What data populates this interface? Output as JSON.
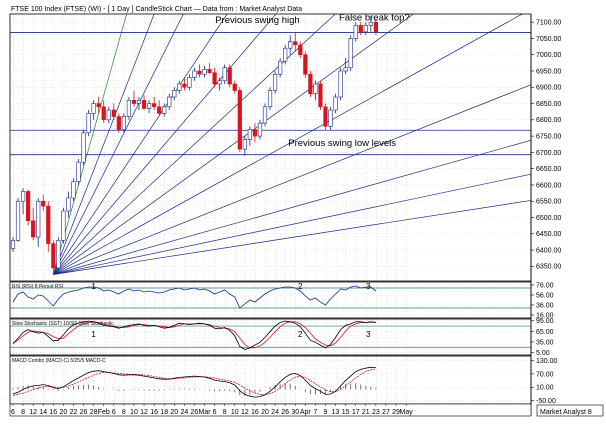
{
  "chart_data": {
    "type": "candlestick",
    "title": "FTSE 100 Index (FTSE) (WI) -  [ 1 Day ] CandleStick Chart — Data from : Market Analyst Data",
    "watermark": "Market Analyst 8",
    "price_ticks": [
      7100,
      7050,
      7000,
      6950,
      6900,
      6850,
      6800,
      6750,
      6700,
      6650,
      6600,
      6550,
      6500,
      6450,
      6400,
      6350
    ],
    "price_tick_labels": [
      "7100.00",
      "7050.00",
      "7000.00",
      "6950.00",
      "6900.00",
      "6850.00",
      "6800.00",
      "6750.00",
      "6700.00",
      "6650.00",
      "6600.00",
      "6550.00",
      "6500.00",
      "6450.00",
      "6400.00",
      "6350.00"
    ],
    "ylim": [
      6305,
      7125
    ],
    "x_labels": [
      "6",
      "8",
      "12",
      "14",
      "16",
      "20",
      "22",
      "26",
      "28",
      "Feb",
      "6",
      "8",
      "10",
      "12",
      "16",
      "18",
      "20",
      "24",
      "26",
      "Mar",
      "6",
      "8",
      "10",
      "12",
      "16",
      "20",
      "24",
      "26",
      "30",
      "Apr",
      "7",
      "9",
      "13",
      "15",
      "17",
      "21",
      "23",
      "27",
      "29",
      "May"
    ],
    "horizontal_levels": [
      7068,
      6768,
      6693
    ],
    "candles": [
      {
        "o": 6405,
        "h": 6440,
        "l": 6395,
        "c": 6430
      },
      {
        "o": 6430,
        "h": 6560,
        "l": 6425,
        "c": 6550
      },
      {
        "o": 6550,
        "h": 6590,
        "l": 6510,
        "c": 6580
      },
      {
        "o": 6580,
        "h": 6585,
        "l": 6475,
        "c": 6490
      },
      {
        "o": 6490,
        "h": 6530,
        "l": 6430,
        "c": 6440
      },
      {
        "o": 6440,
        "h": 6560,
        "l": 6410,
        "c": 6550
      },
      {
        "o": 6550,
        "h": 6570,
        "l": 6520,
        "c": 6535
      },
      {
        "o": 6535,
        "h": 6550,
        "l": 6395,
        "c": 6420
      },
      {
        "o": 6420,
        "h": 6430,
        "l": 6325,
        "c": 6345
      },
      {
        "o": 6345,
        "h": 6440,
        "l": 6340,
        "c": 6430
      },
      {
        "o": 6430,
        "h": 6530,
        "l": 6420,
        "c": 6520
      },
      {
        "o": 6520,
        "h": 6580,
        "l": 6500,
        "c": 6560
      },
      {
        "o": 6560,
        "h": 6620,
        "l": 6550,
        "c": 6610
      },
      {
        "o": 6610,
        "h": 6680,
        "l": 6600,
        "c": 6670
      },
      {
        "o": 6670,
        "h": 6770,
        "l": 6660,
        "c": 6760
      },
      {
        "o": 6760,
        "h": 6830,
        "l": 6750,
        "c": 6820
      },
      {
        "o": 6820,
        "h": 6860,
        "l": 6800,
        "c": 6850
      },
      {
        "o": 6850,
        "h": 6870,
        "l": 6820,
        "c": 6840
      },
      {
        "o": 6840,
        "h": 6860,
        "l": 6790,
        "c": 6800
      },
      {
        "o": 6800,
        "h": 6840,
        "l": 6790,
        "c": 6830
      },
      {
        "o": 6830,
        "h": 6850,
        "l": 6800,
        "c": 6810
      },
      {
        "o": 6810,
        "h": 6820,
        "l": 6760,
        "c": 6770
      },
      {
        "o": 6770,
        "h": 6820,
        "l": 6760,
        "c": 6810
      },
      {
        "o": 6810,
        "h": 6870,
        "l": 6800,
        "c": 6860
      },
      {
        "o": 6860,
        "h": 6890,
        "l": 6840,
        "c": 6850
      },
      {
        "o": 6850,
        "h": 6870,
        "l": 6830,
        "c": 6860
      },
      {
        "o": 6860,
        "h": 6875,
        "l": 6830,
        "c": 6835
      },
      {
        "o": 6835,
        "h": 6860,
        "l": 6820,
        "c": 6850
      },
      {
        "o": 6850,
        "h": 6870,
        "l": 6830,
        "c": 6840
      },
      {
        "o": 6840,
        "h": 6860,
        "l": 6815,
        "c": 6820
      },
      {
        "o": 6820,
        "h": 6850,
        "l": 6810,
        "c": 6840
      },
      {
        "o": 6840,
        "h": 6880,
        "l": 6830,
        "c": 6870
      },
      {
        "o": 6870,
        "h": 6900,
        "l": 6860,
        "c": 6890
      },
      {
        "o": 6890,
        "h": 6920,
        "l": 6880,
        "c": 6910
      },
      {
        "o": 6910,
        "h": 6930,
        "l": 6890,
        "c": 6900
      },
      {
        "o": 6900,
        "h": 6940,
        "l": 6890,
        "c": 6930
      },
      {
        "o": 6930,
        "h": 6960,
        "l": 6920,
        "c": 6950
      },
      {
        "o": 6950,
        "h": 6970,
        "l": 6930,
        "c": 6940
      },
      {
        "o": 6940,
        "h": 6965,
        "l": 6930,
        "c": 6955
      },
      {
        "o": 6955,
        "h": 6975,
        "l": 6940,
        "c": 6945
      },
      {
        "o": 6945,
        "h": 6960,
        "l": 6900,
        "c": 6910
      },
      {
        "o": 6910,
        "h": 6930,
        "l": 6890,
        "c": 6920
      },
      {
        "o": 6920,
        "h": 6970,
        "l": 6910,
        "c": 6960
      },
      {
        "o": 6960,
        "h": 6970,
        "l": 6900,
        "c": 6910
      },
      {
        "o": 6910,
        "h": 6920,
        "l": 6880,
        "c": 6890
      },
      {
        "o": 6890,
        "h": 6900,
        "l": 6700,
        "c": 6710
      },
      {
        "o": 6710,
        "h": 6750,
        "l": 6690,
        "c": 6740
      },
      {
        "o": 6740,
        "h": 6780,
        "l": 6720,
        "c": 6770
      },
      {
        "o": 6770,
        "h": 6790,
        "l": 6730,
        "c": 6750
      },
      {
        "o": 6750,
        "h": 6800,
        "l": 6740,
        "c": 6790
      },
      {
        "o": 6790,
        "h": 6850,
        "l": 6780,
        "c": 6840
      },
      {
        "o": 6840,
        "h": 6900,
        "l": 6830,
        "c": 6890
      },
      {
        "o": 6890,
        "h": 6950,
        "l": 6880,
        "c": 6940
      },
      {
        "o": 6940,
        "h": 6990,
        "l": 6930,
        "c": 6980
      },
      {
        "o": 6980,
        "h": 7030,
        "l": 6970,
        "c": 7020
      },
      {
        "o": 7020,
        "h": 7060,
        "l": 7000,
        "c": 7040
      },
      {
        "o": 7040,
        "h": 7070,
        "l": 7010,
        "c": 7030
      },
      {
        "o": 7030,
        "h": 7040,
        "l": 6990,
        "c": 7000
      },
      {
        "o": 7000,
        "h": 7010,
        "l": 6930,
        "c": 6940
      },
      {
        "o": 6940,
        "h": 6950,
        "l": 6870,
        "c": 6880
      },
      {
        "o": 6880,
        "h": 6920,
        "l": 6860,
        "c": 6910
      },
      {
        "o": 6910,
        "h": 6920,
        "l": 6830,
        "c": 6840
      },
      {
        "o": 6840,
        "h": 6850,
        "l": 6770,
        "c": 6780
      },
      {
        "o": 6780,
        "h": 6840,
        "l": 6770,
        "c": 6830
      },
      {
        "o": 6830,
        "h": 6880,
        "l": 6820,
        "c": 6870
      },
      {
        "o": 6870,
        "h": 6960,
        "l": 6860,
        "c": 6950
      },
      {
        "o": 6950,
        "h": 6990,
        "l": 6940,
        "c": 6960
      },
      {
        "o": 6960,
        "h": 7060,
        "l": 6950,
        "c": 7050
      },
      {
        "o": 7050,
        "h": 7100,
        "l": 7040,
        "c": 7090
      },
      {
        "o": 7090,
        "h": 7100,
        "l": 7060,
        "c": 7070
      },
      {
        "o": 7070,
        "h": 7100,
        "l": 7060,
        "c": 7090
      },
      {
        "o": 7090,
        "h": 7120,
        "l": 7070,
        "c": 7100
      },
      {
        "o": 7100,
        "h": 7110,
        "l": 7060,
        "c": 7070
      }
    ],
    "annotations": [
      {
        "text": "Previous swing high",
        "price": 7097,
        "index": 48.5
      },
      {
        "text": "False break top?",
        "price": 7105,
        "index": 71.7
      },
      {
        "text": "Previous swing low levels",
        "price": 6720,
        "index": 65.3
      }
    ],
    "fan": {
      "origin_index": 8,
      "origin_price": 6325,
      "slopes_per_bar": [
        55,
        40,
        31,
        23.2,
        18.1,
        14.3,
        11.2,
        8.6,
        6.15,
        4.35,
        3.25,
        2.4
      ]
    },
    "rsi": {
      "title": "RSI (RSI) 8 Period RSI",
      "tick_labels": [
        "76.00",
        "56.00",
        "36.00",
        "16.00"
      ],
      "ticks": [
        76,
        56,
        36,
        16
      ],
      "ylim": [
        10,
        82
      ],
      "levels": [
        70,
        30
      ],
      "values": [
        42,
        58,
        62,
        52,
        48,
        56,
        54,
        44,
        34,
        48,
        58,
        62,
        64,
        66,
        70,
        72,
        72,
        70,
        64,
        66,
        62,
        58,
        64,
        68,
        64,
        66,
        62,
        64,
        62,
        60,
        62,
        66,
        68,
        70,
        66,
        68,
        70,
        66,
        68,
        64,
        58,
        62,
        66,
        58,
        52,
        30,
        38,
        46,
        42,
        50,
        58,
        64,
        68,
        70,
        72,
        72,
        70,
        64,
        54,
        46,
        50,
        42,
        36,
        48,
        58,
        68,
        66,
        72,
        74,
        70,
        72,
        72,
        64
      ],
      "labels": [
        {
          "text": "1",
          "index": 16
        },
        {
          "text": "2",
          "index": 57
        },
        {
          "text": "3",
          "index": 70.5
        }
      ]
    },
    "stoch": {
      "title": "Slow Stochastic (SST) 10/3/3 Slow Stochastic",
      "tick_labels": [
        "95.00",
        "65.00",
        "35.00",
        "5.00"
      ],
      "ticks": [
        95,
        65,
        35,
        5
      ],
      "ylim": [
        -2,
        100
      ],
      "levels": [
        80,
        20
      ],
      "k": [
        30,
        45,
        62,
        70,
        64,
        60,
        62,
        50,
        38,
        40,
        55,
        72,
        84,
        88,
        92,
        94,
        92,
        88,
        82,
        80,
        78,
        74,
        78,
        82,
        84,
        86,
        82,
        80,
        82,
        78,
        74,
        76,
        82,
        88,
        86,
        84,
        86,
        88,
        86,
        82,
        74,
        72,
        76,
        68,
        52,
        22,
        14,
        18,
        26,
        34,
        48,
        64,
        80,
        90,
        94,
        92,
        88,
        78,
        60,
        40,
        34,
        26,
        18,
        28,
        48,
        70,
        82,
        86,
        92,
        92,
        90,
        92,
        90
      ],
      "d": [
        32,
        40,
        52,
        62,
        66,
        64,
        62,
        58,
        50,
        44,
        46,
        58,
        70,
        80,
        86,
        90,
        92,
        90,
        86,
        82,
        80,
        76,
        76,
        78,
        82,
        84,
        84,
        82,
        82,
        80,
        78,
        76,
        78,
        82,
        86,
        86,
        86,
        86,
        86,
        84,
        80,
        76,
        74,
        72,
        64,
        46,
        28,
        18,
        18,
        24,
        34,
        48,
        64,
        78,
        88,
        92,
        92,
        86,
        76,
        60,
        44,
        34,
        26,
        24,
        32,
        48,
        66,
        80,
        86,
        90,
        90,
        91,
        91
      ],
      "labels": [
        {
          "text": "1",
          "index": 16
        },
        {
          "text": "2",
          "index": 57
        },
        {
          "text": "3",
          "index": 70.5
        }
      ]
    },
    "macd": {
      "title": "MACD Combo (MACD-C) 5/25/5 MACD-C",
      "tick_labels": [
        "130.00",
        "70.00",
        "10.00",
        "-50.00"
      ],
      "ticks": [
        130,
        70,
        10,
        -50
      ],
      "ylim": [
        -65,
        150
      ],
      "macd": [
        -20,
        -12,
        0,
        10,
        16,
        18,
        22,
        18,
        8,
        4,
        12,
        26,
        40,
        52,
        64,
        76,
        82,
        84,
        80,
        76,
        72,
        66,
        64,
        66,
        66,
        64,
        60,
        56,
        52,
        48,
        46,
        46,
        50,
        54,
        56,
        58,
        60,
        58,
        56,
        50,
        42,
        38,
        36,
        30,
        20,
        -6,
        -22,
        -30,
        -34,
        -32,
        -24,
        -8,
        12,
        34,
        54,
        68,
        72,
        62,
        42,
        18,
        4,
        -8,
        -22,
        -20,
        -8,
        16,
        40,
        60,
        80,
        90,
        96,
        100,
        98
      ],
      "signal": [
        -26,
        -22,
        -16,
        -8,
        0,
        6,
        12,
        14,
        12,
        10,
        10,
        16,
        24,
        34,
        44,
        54,
        64,
        72,
        76,
        76,
        74,
        72,
        70,
        68,
        68,
        67,
        65,
        62,
        58,
        54,
        50,
        48,
        48,
        50,
        52,
        54,
        56,
        57,
        57,
        55,
        51,
        46,
        42,
        38,
        32,
        20,
        6,
        -6,
        -16,
        -22,
        -24,
        -18,
        -8,
        8,
        26,
        42,
        56,
        60,
        54,
        40,
        26,
        12,
        -2,
        -10,
        -10,
        0,
        16,
        34,
        52,
        68,
        80,
        88,
        92
      ]
    }
  }
}
